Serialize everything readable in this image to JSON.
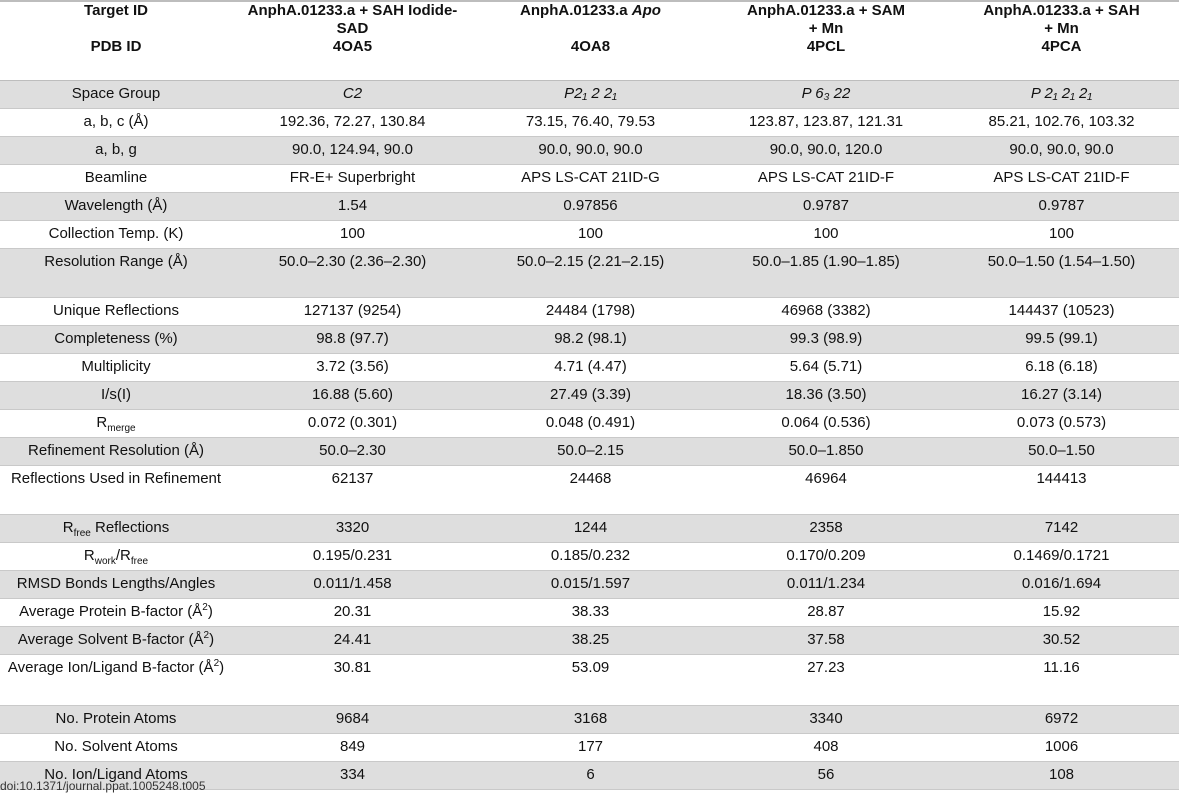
{
  "header": {
    "row1_label": "Target ID",
    "row2_label": "PDB ID",
    "columns": [
      {
        "target": [
          "AnphA.01233.a + SAH Iodide-",
          "SAD"
        ],
        "pdb": "4OA5"
      },
      {
        "target_prefix": "AnphA.01233.a ",
        "target_italic": "Apo",
        "pdb": "4OA8"
      },
      {
        "target": [
          "AnphA.01233.a + SAM",
          "+ Mn"
        ],
        "pdb": "4PCL"
      },
      {
        "target": [
          "AnphA.01233.a + SAH",
          "+ Mn"
        ],
        "pdb": "4PCA"
      }
    ]
  },
  "rows": [
    {
      "label": "Space Group",
      "values": [
        "C2",
        "P2₁ 2 2₁",
        "P 6₃ 22",
        "P 2₁ 2₁ 2₁"
      ]
    },
    {
      "label": "a, b, c (Å)",
      "values": [
        "192.36, 72.27, 130.84",
        "73.15, 76.40, 79.53",
        "123.87, 123.87, 121.31",
        "85.21, 102.76, 103.32"
      ]
    },
    {
      "label": "a, b, g",
      "values": [
        "90.0, 124.94, 90.0",
        "90.0, 90.0, 90.0",
        "90.0, 90.0, 120.0",
        "90.0, 90.0, 90.0"
      ]
    },
    {
      "label": "Beamline",
      "values": [
        "FR-E+ Superbright",
        "APS LS-CAT 21ID-G",
        "APS LS-CAT 21ID-F",
        "APS LS-CAT 21ID-F"
      ]
    },
    {
      "label": "Wavelength (Å)",
      "values": [
        "1.54",
        "0.97856",
        "0.9787",
        "0.9787"
      ]
    },
    {
      "label": "Collection Temp. (K)",
      "values": [
        "100",
        "100",
        "100",
        "100"
      ]
    },
    {
      "label": "Resolution Range (Å)",
      "values": [
        "50.0–2.30 (2.36–2.30)",
        "50.0–2.15 (2.21–2.15)",
        "50.0–1.85 (1.90–1.85)",
        "50.0–1.50 (1.54–1.50)"
      ]
    },
    {
      "label": "Unique Reflections",
      "values": [
        "127137 (9254)",
        "24484 (1798)",
        "46968 (3382)",
        "144437 (10523)"
      ]
    },
    {
      "label": "Completeness (%)",
      "values": [
        "98.8 (97.7)",
        "98.2 (98.1)",
        "99.3 (98.9)",
        "99.5 (99.1)"
      ]
    },
    {
      "label": "Multiplicity",
      "values": [
        "3.72 (3.56)",
        "4.71 (4.47)",
        "5.64 (5.71)",
        "6.18 (6.18)"
      ]
    },
    {
      "label": "I/s(I)",
      "values": [
        "16.88 (5.60)",
        "27.49 (3.39)",
        "18.36 (3.50)",
        "16.27 (3.14)"
      ]
    },
    {
      "label_main": "R",
      "label_sub": "merge",
      "values": [
        "0.072 (0.301)",
        "0.048 (0.491)",
        "0.064 (0.536)",
        "0.073 (0.573)"
      ]
    },
    {
      "label": "Refinement Resolution (Å)",
      "values": [
        "50.0–2.30",
        "50.0–2.15",
        "50.0–1.850",
        "50.0–1.50"
      ]
    },
    {
      "label": "Reflections Used in Refinement",
      "values": [
        "62137",
        "24468",
        "46964",
        "144413"
      ]
    },
    {
      "label_main": "R",
      "label_sub": "free",
      "label_after": " Reflections",
      "values": [
        "3320",
        "1244",
        "2358",
        "7142"
      ]
    },
    {
      "label_main": "R",
      "label_sub": "work",
      "label_mid": "/R",
      "label_sub2": "free",
      "values": [
        "0.195/0.231",
        "0.185/0.232",
        "0.170/0.209",
        "0.1469/0.1721"
      ]
    },
    {
      "label": "RMSD Bonds Lengths/Angles",
      "values": [
        "0.011/1.458",
        "0.015/1.597",
        "0.011/1.234",
        "0.016/1.694"
      ]
    },
    {
      "label_main": "Average Protein B-factor (Å",
      "label_sup": "2",
      "label_after": ")",
      "values": [
        "20.31",
        "38.33",
        "28.87",
        "15.92"
      ]
    },
    {
      "label_main": "Average Solvent B-factor (Å",
      "label_sup": "2",
      "label_after": ")",
      "values": [
        "24.41",
        "38.25",
        "37.58",
        "30.52"
      ]
    },
    {
      "label_main": "Average Ion/Ligand B-factor (Å",
      "label_sup": "2",
      "label_after": ")",
      "values": [
        "30.81",
        "53.09",
        "27.23",
        "11.16"
      ]
    },
    {
      "label": "No. Protein Atoms",
      "values": [
        "9684",
        "3168",
        "3340",
        "6972"
      ]
    },
    {
      "label": "No. Solvent Atoms",
      "values": [
        "849",
        "177",
        "408",
        "1006"
      ]
    },
    {
      "label": "No. Ion/Ligand Atoms",
      "values": [
        "334",
        "6",
        "56",
        "108"
      ]
    }
  ],
  "footer": {
    "doi": "doi:10.1371/journal.ppat.1005248.t005"
  }
}
